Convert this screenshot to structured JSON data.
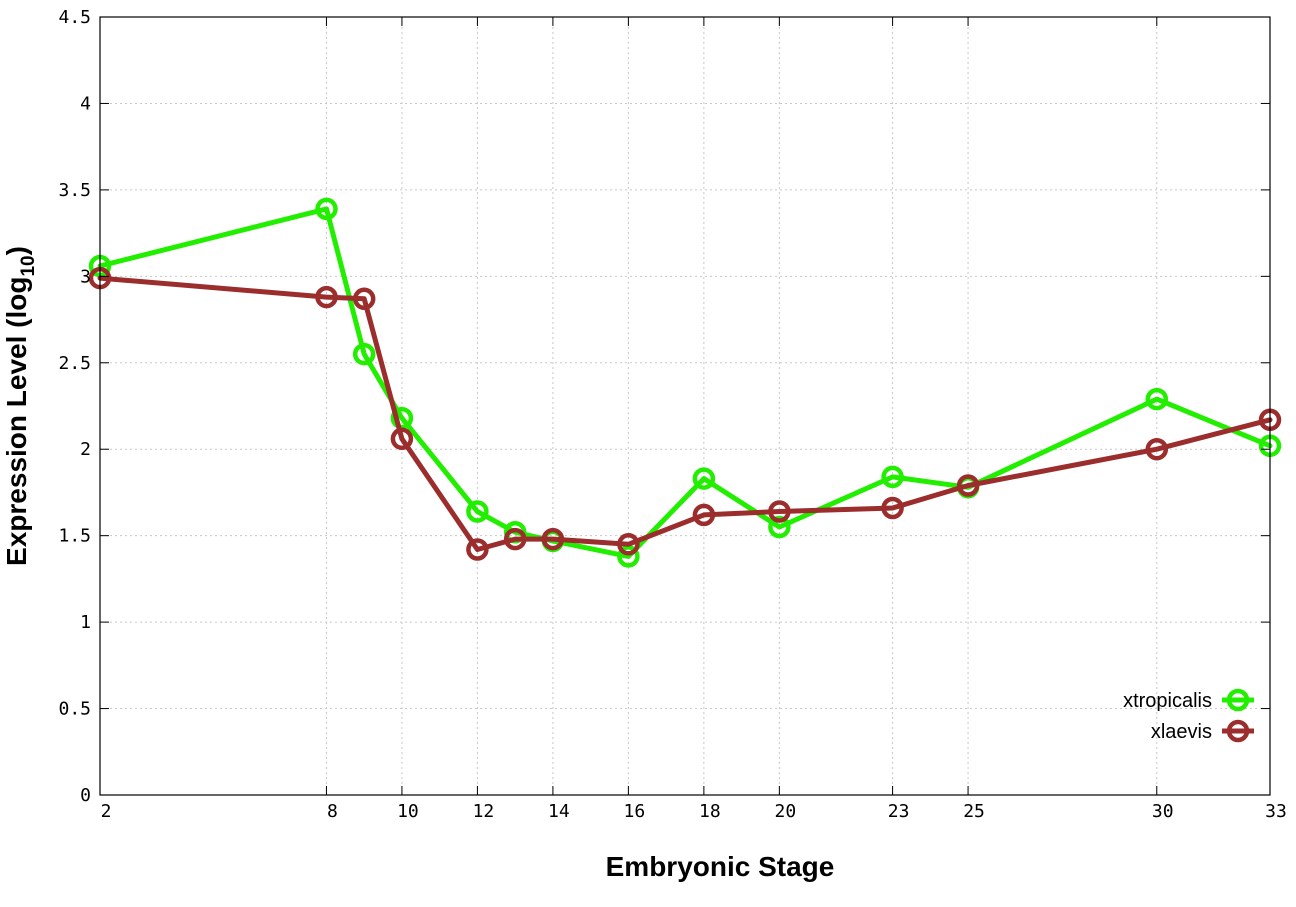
{
  "chart_data": {
    "type": "line",
    "title": "",
    "xlabel": "Embryonic Stage",
    "ylabel_main": "Expression Level (log",
    "ylabel_sub": "10",
    "ylabel_close": ")",
    "x_ticks": [
      2,
      8,
      10,
      12,
      14,
      16,
      18,
      20,
      23,
      25,
      30,
      33
    ],
    "x_tick_labels": [
      "2",
      "8",
      "10",
      "12",
      "14",
      "16",
      "18",
      "20",
      "23",
      "25",
      "30",
      "33"
    ],
    "xlim": [
      2,
      33
    ],
    "y_ticks": [
      0,
      0.5,
      1,
      1.5,
      2,
      2.5,
      3,
      3.5,
      4,
      4.5
    ],
    "y_tick_labels": [
      "0",
      "0.5",
      "1",
      "1.5",
      "2",
      "2.5",
      "3",
      "3.5",
      "4",
      "4.5"
    ],
    "ylim": [
      0,
      4.5
    ],
    "grid": true,
    "legend_position": "bottom-right",
    "series": [
      {
        "name": "xtropicalis",
        "color": "#22ee00",
        "x": [
          2,
          8,
          9,
          10,
          12,
          13,
          14,
          16,
          18,
          20,
          23,
          25,
          30,
          33
        ],
        "y": [
          3.06,
          3.39,
          2.55,
          2.18,
          1.64,
          1.52,
          1.47,
          1.38,
          1.83,
          1.55,
          1.84,
          1.78,
          2.29,
          2.02
        ]
      },
      {
        "name": "xlaevis",
        "color": "#9b2d2d",
        "x": [
          2,
          8,
          9,
          10,
          12,
          13,
          14,
          16,
          18,
          20,
          23,
          25,
          30,
          33
        ],
        "y": [
          2.99,
          2.88,
          2.87,
          2.06,
          1.42,
          1.48,
          1.48,
          1.45,
          1.62,
          1.64,
          1.66,
          1.79,
          2.0,
          2.17
        ]
      }
    ]
  }
}
